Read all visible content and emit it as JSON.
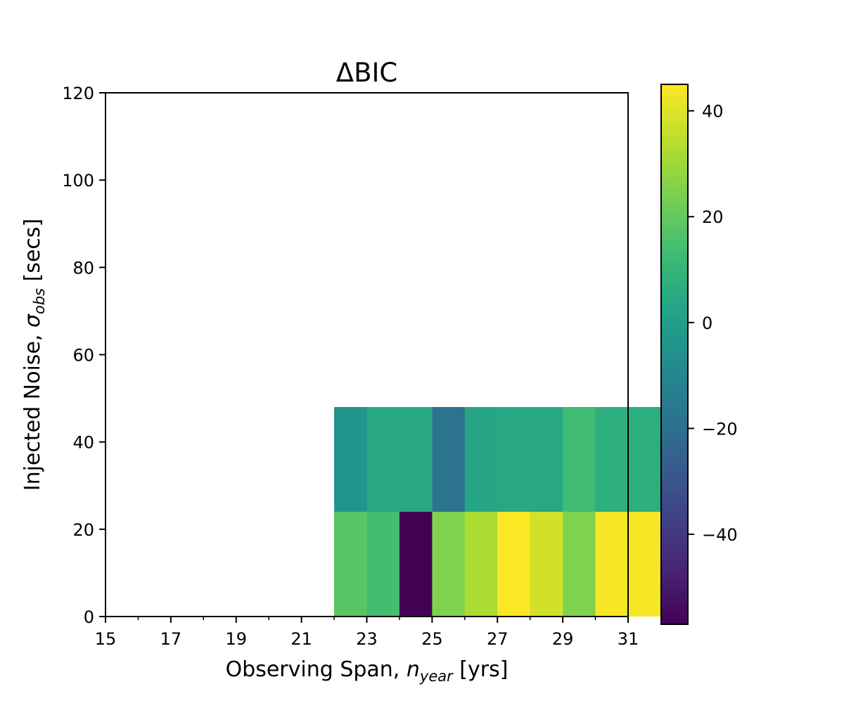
{
  "chart_data": {
    "type": "heatmap",
    "title": "ΔBIC",
    "xlabel": {
      "prefix": "Observing Span, ",
      "var": "n",
      "sub": "year",
      "suffix": " [yrs]"
    },
    "ylabel": {
      "prefix": "Injected Noise, ",
      "var": "σ",
      "sub": "obs",
      "suffix": " [secs]"
    },
    "xlim": [
      15,
      31
    ],
    "ylim": [
      0,
      120
    ],
    "x_major_ticks": [
      15,
      17,
      19,
      21,
      23,
      25,
      27,
      29,
      31
    ],
    "x_minor_ticks": [
      16,
      18,
      20,
      22,
      24,
      26,
      28,
      30
    ],
    "y_ticks": [
      0,
      20,
      40,
      60,
      80,
      100,
      120
    ],
    "colormap": "viridis",
    "colorbar": {
      "min": -57,
      "max": 45,
      "ticks": [
        -40,
        -20,
        0,
        20,
        40
      ]
    },
    "cell_width": 2,
    "cell_height": 24,
    "cells": [
      {
        "x": 22,
        "y": 0,
        "value": 18
      },
      {
        "x": 23,
        "y": 0,
        "value": 14
      },
      {
        "x": 24,
        "y": 0,
        "value": -57
      },
      {
        "x": 25,
        "y": 0,
        "value": 25
      },
      {
        "x": 26,
        "y": 0,
        "value": 32
      },
      {
        "x": 27,
        "y": 0,
        "value": 45
      },
      {
        "x": 28,
        "y": 0,
        "value": 38
      },
      {
        "x": 29,
        "y": 0,
        "value": 25
      },
      {
        "x": 30,
        "y": 0,
        "value": 44
      },
      {
        "x": 22,
        "y": 24,
        "value": -4
      },
      {
        "x": 23,
        "y": 24,
        "value": 4
      },
      {
        "x": 25,
        "y": 24,
        "value": -18
      },
      {
        "x": 26,
        "y": 24,
        "value": 3
      },
      {
        "x": 27,
        "y": 24,
        "value": 4
      },
      {
        "x": 28,
        "y": 24,
        "value": 4
      },
      {
        "x": 29,
        "y": 24,
        "value": 13
      },
      {
        "x": 30,
        "y": 24,
        "value": 7
      }
    ]
  }
}
